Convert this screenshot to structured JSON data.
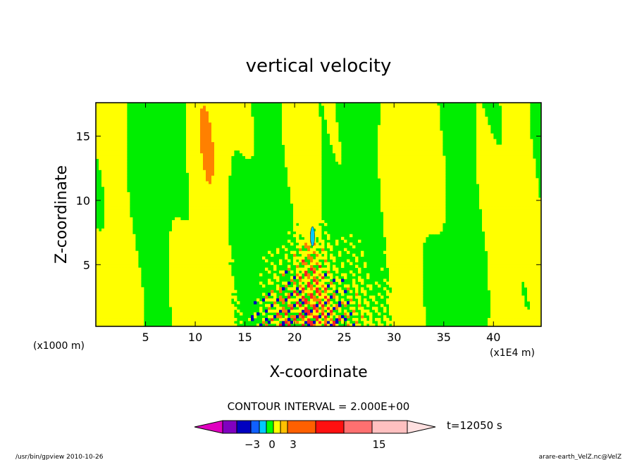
{
  "chart_data": {
    "type": "heatmap",
    "title": "vertical velocity",
    "xlabel": "X-coordinate",
    "ylabel": "Z-coordinate",
    "x_unit_left": "(x1000 m)",
    "x_unit_right": "(x1E4 m)",
    "x_ticks": [
      5,
      10,
      15,
      20,
      25,
      30,
      35,
      40
    ],
    "y_ticks": [
      5,
      10,
      15
    ],
    "xlim": [
      0,
      44.8
    ],
    "ylim": [
      0.2,
      17.6
    ],
    "contour_interval": "CONTOUR INTERVAL = 2.000E+00",
    "time_label": "t=12050 s",
    "colorbar": {
      "levels": [
        -3,
        0,
        3,
        15
      ],
      "colors": [
        "#e000c0",
        "#8000c0",
        "#0000c0",
        "#1060ff",
        "#00c8ff",
        "#00ff00",
        "#ffff00",
        "#ffc000",
        "#ff6000",
        "#ff1010",
        "#ff7070",
        "#ffc0c0",
        "#ffe0e0"
      ]
    },
    "field_colors": {
      "positive_weak": "#ffff00",
      "negative_weak": "#00ee00",
      "updraft": "#ff8000",
      "strong_updraft": "#ff2020",
      "downdraft": "#0000c0",
      "tracer": "#00c8ff"
    },
    "plume_center_x": 21.5
  },
  "footer": {
    "left": "/usr/bin/gpview   2010-10-26",
    "right": "arare-earth_VelZ.nc@VelZ"
  }
}
